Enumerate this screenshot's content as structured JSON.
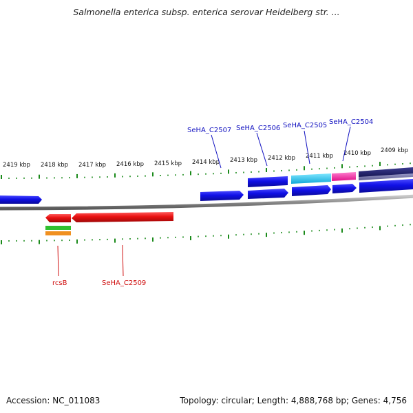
{
  "title": "Salmonella enterica subsp. enterica serovar Heidelberg str. ...",
  "footer": {
    "accession": "Accession: NC_011083",
    "topology": "Topology: circular; Length: 4,888,768 bp; Genes: 4,756"
  },
  "colors": {
    "forward_gene": "#1010e0",
    "reverse_gene": "#e01010",
    "label_forward": "#1010c0",
    "label_reverse": "#d01010",
    "tick_green": "#1a8a1a",
    "backbone": "#808080",
    "cyan_feature": "#20c0e8",
    "magenta_feature": "#f020a0",
    "navy_feature": "#202070",
    "green_feature": "#30c030",
    "orange_feature": "#f09020"
  },
  "kbp_scale": [
    "2419 kbp",
    "2418 kbp",
    "2417 kbp",
    "2416 kbp",
    "2415 kbp",
    "2414 kbp",
    "2413 kbp",
    "2412 kbp",
    "2411 kbp",
    "2410 kbp",
    "2409 kbp"
  ],
  "gene_labels_forward": [
    "SeHA_C2507",
    "SeHA_C2506",
    "SeHA_C2505",
    "SeHA_C2504"
  ],
  "gene_labels_reverse": [
    "rcsB",
    "SeHA_C2509"
  ]
}
